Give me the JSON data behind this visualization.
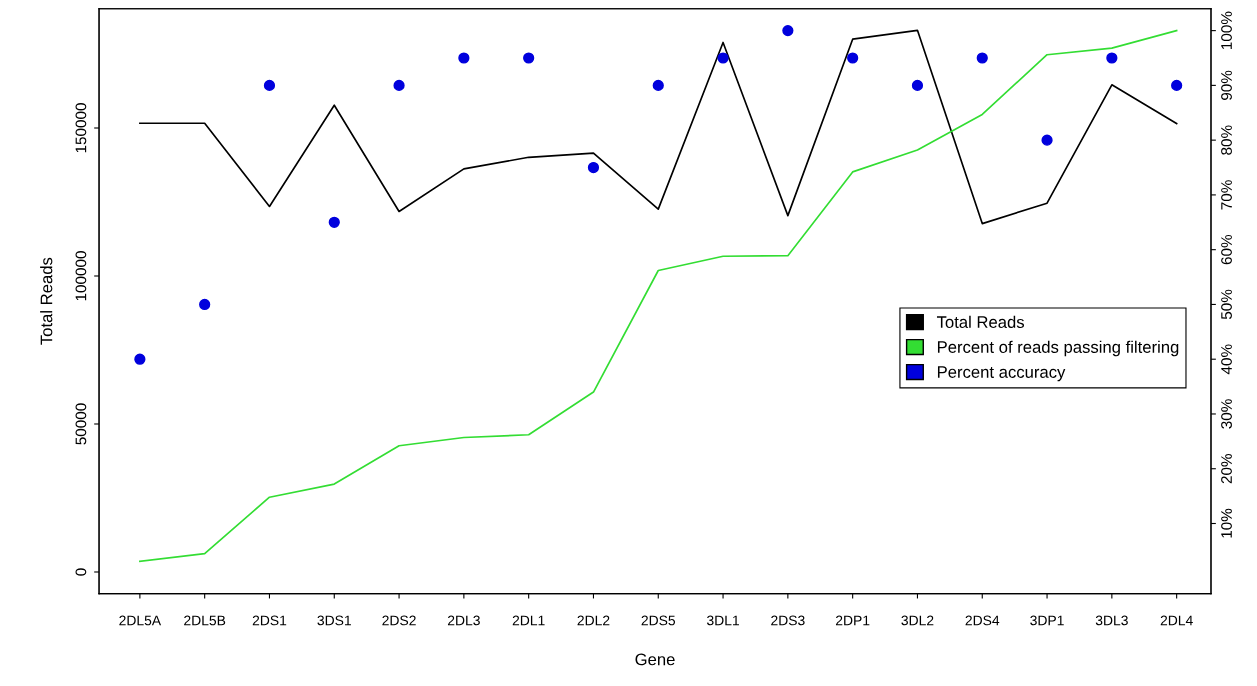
{
  "chart_data": {
    "type": "line",
    "xlabel": "Gene",
    "ylabel": "Total Reads",
    "categories": [
      "2DL5A",
      "2DL5B",
      "2DS1",
      "3DS1",
      "2DS2",
      "2DL3",
      "2DL1",
      "2DL2",
      "2DS5",
      "3DL1",
      "2DS3",
      "2DP1",
      "3DL2",
      "2DS4",
      "3DP1",
      "3DL3",
      "2DL4"
    ],
    "series": [
      {
        "name": "Total Reads",
        "color": "#000000",
        "values": [
          151600,
          151600,
          123500,
          157700,
          121800,
          136200,
          140100,
          141500,
          122600,
          178900,
          120400,
          180000,
          183000,
          117700,
          124600,
          164600,
          151500
        ]
      },
      {
        "name": "Percent of reads passing filtering",
        "axis": "y2",
        "color": "#33dd33",
        "values": [
          3.1,
          4.5,
          14.8,
          17.2,
          24.2,
          25.7,
          26.2,
          34.0,
          56.2,
          58.8,
          58.9,
          74.2,
          78.2,
          84.7,
          95.6,
          96.8,
          100
        ]
      },
      {
        "name": "Percent accuracy",
        "type": "scatter",
        "axis": "y2",
        "color": "#0000dd",
        "marker": "circle",
        "values": [
          40,
          50,
          90,
          65,
          90,
          95,
          95,
          75,
          90,
          95,
          100,
          95,
          90,
          95,
          80,
          95,
          90
        ]
      }
    ],
    "ylim": [
      -7300,
      190300
    ],
    "yticks": [
      0,
      50000,
      100000,
      150000
    ],
    "y2lim": [
      -2.8,
      104
    ],
    "y2ticks": [
      {
        "value": 10,
        "label": "10%"
      },
      {
        "value": 20,
        "label": "20%"
      },
      {
        "value": 30,
        "label": "30%"
      },
      {
        "value": 40,
        "label": "40%"
      },
      {
        "value": 50,
        "label": "50%"
      },
      {
        "value": 60,
        "label": "60%"
      },
      {
        "value": 70,
        "label": "70%"
      },
      {
        "value": 80,
        "label": "80%"
      },
      {
        "value": 90,
        "label": "90%"
      },
      {
        "value": 100,
        "label": "100%"
      }
    ],
    "grid": false,
    "legend": "right"
  }
}
